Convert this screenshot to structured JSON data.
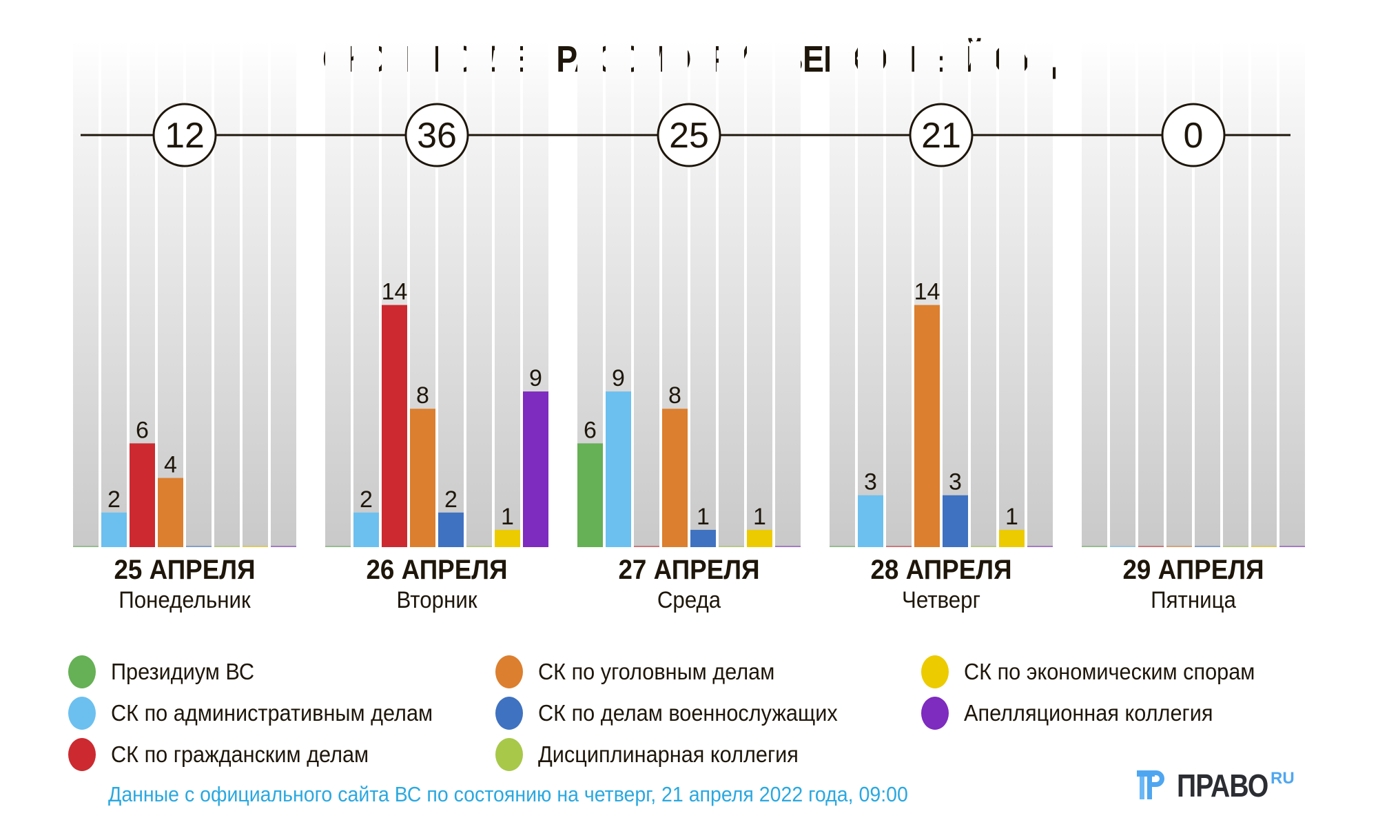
{
  "title": "СКОЛЬКО ДЕЛ РАССМОТРИТ ВЕРХОВНЫЙ СУД",
  "chart_data": {
    "type": "bar",
    "title": "СКОЛЬКО ДЕЛ РАССМОТРИТ ВЕРХОВНЫЙ СУД",
    "xlabel": "",
    "ylabel": "",
    "ylim": [
      0,
      14
    ],
    "grid": false,
    "legend_position": "bottom",
    "categories": [
      {
        "date": "25 АПРЕЛЯ",
        "weekday": "Понедельник",
        "total": 12
      },
      {
        "date": "26 АПРЕЛЯ",
        "weekday": "Вторник",
        "total": 36
      },
      {
        "date": "27 АПРЕЛЯ",
        "weekday": "Среда",
        "total": 25
      },
      {
        "date": "28 АПРЕЛЯ",
        "weekday": "Четверг",
        "total": 21
      },
      {
        "date": "29 АПРЕЛЯ",
        "weekday": "Пятница",
        "total": 0
      }
    ],
    "series": [
      {
        "name": "Президиум ВС",
        "color": "#66b055",
        "values": [
          0,
          0,
          6,
          0,
          0
        ]
      },
      {
        "name": "СК по административным делам",
        "color": "#6cc0ef",
        "values": [
          2,
          2,
          9,
          3,
          0
        ]
      },
      {
        "name": "СК по гражданским делам",
        "color": "#cc2a30",
        "values": [
          6,
          14,
          0,
          0,
          0
        ]
      },
      {
        "name": "СК по уголовным делам",
        "color": "#dc7f2e",
        "values": [
          4,
          8,
          8,
          14,
          0
        ]
      },
      {
        "name": "СК по делам военнослужащих",
        "color": "#3f72c0",
        "values": [
          0,
          2,
          1,
          3,
          0
        ]
      },
      {
        "name": "Дисциплинарная коллегия",
        "color": "#a8c84a",
        "values": [
          0,
          0,
          0,
          0,
          0
        ]
      },
      {
        "name": "СК по экономическим спорам",
        "color": "#eccb00",
        "values": [
          0,
          1,
          1,
          1,
          0
        ]
      },
      {
        "name": "Апелляционная коллегия",
        "color": "#7e2bbf",
        "values": [
          0,
          9,
          0,
          0,
          0
        ]
      }
    ]
  },
  "legend": {
    "columns": [
      [
        0,
        1,
        2
      ],
      [
        3,
        4,
        5
      ],
      [
        6,
        7
      ]
    ]
  },
  "source": "Данные с официального сайта ВС по состоянию на четверг, 21 апреля 2022 года, 09:00",
  "logo": {
    "text": "ПРАВО",
    "suffix": "RU",
    "icon": "pravo-logo-icon"
  }
}
